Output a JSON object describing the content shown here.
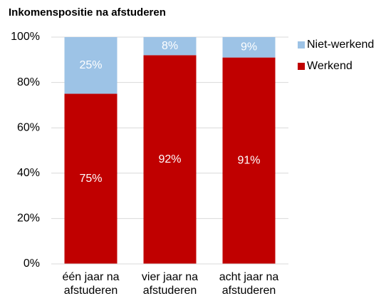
{
  "chart_data": {
    "type": "stacked-bar",
    "title": "Inkomenspositie na afstuderen",
    "categories": [
      "één jaar na afstuderen",
      "vier jaar na afstuderen",
      "acht jaar na afstuderen"
    ],
    "series": [
      {
        "name": "Werkend",
        "color": "#c00000",
        "values": [
          75,
          92,
          91
        ],
        "value_labels": [
          "75%",
          "92%",
          "91%"
        ]
      },
      {
        "name": "Niet-werkend",
        "color": "#9dc3e6",
        "values": [
          25,
          8,
          9
        ],
        "value_labels": [
          "25%",
          "8%",
          "9%"
        ]
      }
    ],
    "ylim": [
      0,
      100
    ],
    "yticks": [
      {
        "value": 0,
        "label": "0%"
      },
      {
        "value": 20,
        "label": "20%"
      },
      {
        "value": 40,
        "label": "40%"
      },
      {
        "value": 60,
        "label": "60%"
      },
      {
        "value": 80,
        "label": "80%"
      },
      {
        "value": 100,
        "label": "100%"
      }
    ],
    "grid": true,
    "legend": "right"
  }
}
